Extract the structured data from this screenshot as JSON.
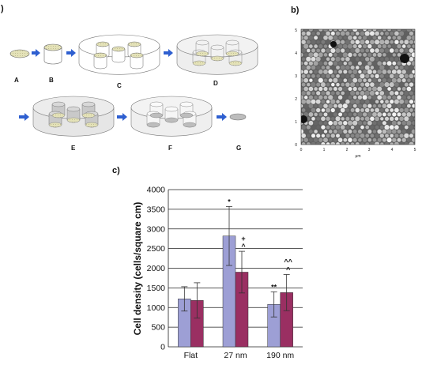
{
  "panels": {
    "a": {
      "label": ")",
      "steps": [
        "A",
        "B",
        "C",
        "D",
        "E",
        "F",
        "G"
      ]
    },
    "b": {
      "label": "b)",
      "x_ticks": [
        "0",
        "1",
        "2",
        "3",
        "4",
        "5"
      ],
      "y_ticks": [
        "0",
        "1",
        "2",
        "3",
        "4",
        "5"
      ],
      "x_unit": "μm"
    },
    "c": {
      "label": "c)"
    }
  },
  "colors": {
    "arrow": "#2e5fd0",
    "film": "#e4e2b8",
    "series_1": "#9d9fd5",
    "series_2": "#9a2f62"
  },
  "chart_data": {
    "type": "bar",
    "categories": [
      "Flat",
      "27 nm",
      "190 nm"
    ],
    "series": [
      {
        "values": [
          1220,
          2820,
          1080
        ],
        "errors": [
          310,
          750,
          320
        ]
      },
      {
        "values": [
          1180,
          1900,
          1380
        ],
        "errors": [
          450,
          530,
          460
        ]
      }
    ],
    "ylabel": "Cell density (cells/square cm)",
    "ylim": [
      0,
      4000
    ],
    "yticks": [
      0,
      500,
      1000,
      1500,
      2000,
      2500,
      3000,
      3500,
      4000
    ],
    "grid": true,
    "annotations": [
      {
        "category": "27 nm",
        "series": 0,
        "text": "*"
      },
      {
        "category": "27 nm",
        "series": 1,
        "text": "+"
      },
      {
        "category": "27 nm",
        "series": 1,
        "text": "^"
      },
      {
        "category": "190 nm",
        "series": 0,
        "text": "**"
      },
      {
        "category": "190 nm",
        "series": 1,
        "text": "^^"
      },
      {
        "category": "190 nm",
        "series": 1,
        "text": "^"
      }
    ]
  }
}
